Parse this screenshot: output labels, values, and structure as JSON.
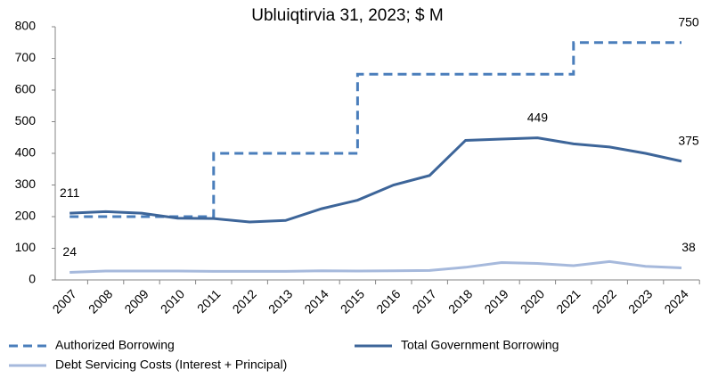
{
  "chart_data": {
    "type": "line",
    "title": "Ubluiqtirvia 31, 2023; $ M",
    "categories": [
      "2007",
      "2008",
      "2009",
      "2010",
      "2011",
      "2012",
      "2013",
      "2014",
      "2015",
      "2016",
      "2017",
      "2018",
      "2019",
      "2020",
      "2021",
      "2022",
      "2023",
      "2024"
    ],
    "series": [
      {
        "name": "Authorized Borrowing",
        "color": "#4a7ebb",
        "dashed": true,
        "step": "post",
        "values": [
          200,
          200,
          200,
          200,
          400,
          400,
          400,
          400,
          650,
          650,
          650,
          650,
          650,
          650,
          750,
          750,
          750,
          750
        ],
        "value_labels": [
          null,
          null,
          null,
          null,
          null,
          null,
          null,
          null,
          null,
          null,
          null,
          null,
          null,
          null,
          null,
          null,
          null,
          "750"
        ]
      },
      {
        "name": "Total Government Borrowing",
        "color": "#3d6599",
        "dashed": false,
        "values": [
          211,
          216,
          211,
          195,
          194,
          183,
          188,
          225,
          252,
          300,
          330,
          441,
          445,
          449,
          430,
          420,
          400,
          375
        ],
        "value_labels": [
          "211",
          null,
          null,
          null,
          null,
          null,
          null,
          null,
          null,
          null,
          null,
          null,
          null,
          "449",
          null,
          null,
          null,
          "375"
        ]
      },
      {
        "name": "Debt Servicing Costs (Interest + Principal)",
        "color": "#a6b9dc",
        "dashed": false,
        "values": [
          24,
          28,
          28,
          28,
          27,
          27,
          27,
          29,
          28,
          29,
          30,
          40,
          55,
          52,
          45,
          58,
          43,
          38
        ],
        "value_labels": [
          "24",
          null,
          null,
          null,
          null,
          null,
          null,
          null,
          null,
          null,
          null,
          null,
          null,
          null,
          null,
          null,
          null,
          "38"
        ]
      }
    ],
    "ylim": [
      0,
      800
    ],
    "yticks": [
      0,
      100,
      200,
      300,
      400,
      500,
      600,
      700,
      800
    ],
    "grid": false
  }
}
